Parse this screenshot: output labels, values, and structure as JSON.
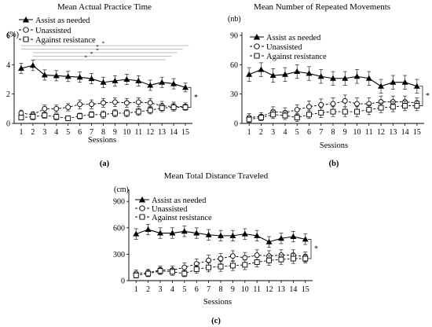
{
  "chart_data": [
    {
      "type": "line",
      "panel_label": "(a)",
      "title": "Mean Actual Practice Time",
      "xlabel": "Sessions",
      "ylabel": "(%)",
      "x": [
        1,
        2,
        3,
        4,
        5,
        6,
        7,
        8,
        9,
        10,
        11,
        12,
        13,
        14,
        15
      ],
      "xlim": [
        0.4,
        15.6
      ],
      "ylim": [
        0,
        6
      ],
      "yticks": [
        0,
        2,
        4,
        6
      ],
      "significance_marker": "*",
      "brackets": [
        [
          1,
          15
        ],
        [
          1,
          14
        ],
        [
          2,
          13
        ],
        [
          2,
          12
        ],
        [
          2,
          11
        ]
      ],
      "series": [
        {
          "name": "Assist as needed",
          "marker": "triangle",
          "filled": true,
          "dashed": false,
          "values": [
            3.75,
            3.95,
            3.3,
            3.25,
            3.2,
            3.15,
            3.05,
            2.8,
            2.9,
            3.0,
            2.9,
            2.6,
            2.8,
            2.7,
            2.45
          ],
          "errors": [
            0.35,
            0.35,
            0.35,
            0.35,
            0.35,
            0.35,
            0.35,
            0.35,
            0.35,
            0.35,
            0.35,
            0.35,
            0.35,
            0.35,
            0.3
          ]
        },
        {
          "name": "Unassisted",
          "marker": "circle",
          "filled": false,
          "dashed": true,
          "values": [
            0.7,
            0.6,
            1.0,
            1.0,
            1.1,
            1.3,
            1.3,
            1.4,
            1.45,
            1.4,
            1.45,
            1.4,
            1.2,
            1.15,
            1.15
          ],
          "errors": [
            0.2,
            0.2,
            0.25,
            0.25,
            0.25,
            0.3,
            0.3,
            0.3,
            0.3,
            0.3,
            0.3,
            0.3,
            0.3,
            0.3,
            0.25
          ]
        },
        {
          "name": "Against resistance",
          "marker": "square",
          "filled": false,
          "dashed": true,
          "values": [
            0.4,
            0.45,
            0.55,
            0.45,
            0.35,
            0.5,
            0.6,
            0.6,
            0.7,
            0.7,
            0.8,
            0.9,
            1.05,
            1.1,
            1.1
          ],
          "errors": [
            0.15,
            0.2,
            0.2,
            0.2,
            0.15,
            0.2,
            0.2,
            0.25,
            0.25,
            0.25,
            0.25,
            0.25,
            0.25,
            0.25,
            0.2
          ]
        }
      ]
    },
    {
      "type": "line",
      "panel_label": "(b)",
      "title": "Mean Number of Repeated Movements",
      "xlabel": "Sessions",
      "ylabel": "(nb)",
      "x": [
        1,
        2,
        3,
        4,
        5,
        6,
        7,
        8,
        9,
        10,
        11,
        12,
        13,
        14,
        15
      ],
      "xlim": [
        0.4,
        15.6
      ],
      "ylim": [
        0,
        90
      ],
      "yticks": [
        0,
        30,
        60,
        90
      ],
      "significance_marker": "*",
      "series": [
        {
          "name": "Assist as needed",
          "marker": "triangle",
          "filled": true,
          "dashed": false,
          "values": [
            50,
            55,
            49,
            50,
            53,
            51,
            48,
            46,
            46,
            48,
            46,
            38,
            42,
            42,
            38
          ],
          "errors": [
            7,
            7,
            7,
            7,
            7,
            7,
            7,
            7,
            7,
            7,
            7,
            7,
            7,
            7,
            7
          ]
        },
        {
          "name": "Unassisted",
          "marker": "circle",
          "filled": false,
          "dashed": true,
          "values": [
            6,
            7,
            12,
            11,
            14,
            17,
            19,
            20,
            23,
            20,
            20,
            22,
            22,
            22,
            21
          ],
          "errors": [
            4,
            4,
            5,
            5,
            5,
            6,
            6,
            6,
            6,
            6,
            6,
            6,
            6,
            6,
            5
          ]
        },
        {
          "name": "Against resistance",
          "marker": "square",
          "filled": false,
          "dashed": true,
          "values": [
            4,
            6,
            9,
            8,
            6,
            9,
            11,
            12,
            12,
            12,
            14,
            16,
            17,
            18,
            18
          ],
          "errors": [
            3,
            3,
            4,
            4,
            4,
            4,
            5,
            5,
            5,
            5,
            5,
            5,
            5,
            5,
            5
          ]
        }
      ]
    },
    {
      "type": "line",
      "panel_label": "(c)",
      "title": "Mean Total Distance Traveled",
      "xlabel": "Sessions",
      "ylabel": "(cm)",
      "x": [
        1,
        2,
        3,
        4,
        5,
        6,
        7,
        8,
        9,
        10,
        11,
        12,
        13,
        14,
        15
      ],
      "xlim": [
        0.4,
        15.6
      ],
      "ylim": [
        0,
        1000
      ],
      "yticks": [
        0,
        300,
        600,
        900
      ],
      "significance_marker": "*",
      "series": [
        {
          "name": "Assist as needed",
          "marker": "triangle",
          "filled": true,
          "dashed": false,
          "values": [
            530,
            580,
            540,
            540,
            560,
            540,
            520,
            510,
            510,
            530,
            510,
            440,
            480,
            500,
            470
          ],
          "errors": [
            60,
            60,
            60,
            60,
            60,
            60,
            60,
            60,
            60,
            60,
            60,
            60,
            60,
            60,
            60
          ]
        },
        {
          "name": "Unassisted",
          "marker": "circle",
          "filled": false,
          "dashed": true,
          "values": [
            80,
            90,
            120,
            120,
            150,
            190,
            230,
            250,
            280,
            260,
            290,
            280,
            290,
            290,
            270
          ],
          "errors": [
            40,
            40,
            45,
            45,
            50,
            55,
            60,
            60,
            60,
            60,
            60,
            60,
            60,
            60,
            55
          ]
        },
        {
          "name": "Against resistance",
          "marker": "square",
          "filled": false,
          "dashed": true,
          "values": [
            60,
            80,
            110,
            100,
            80,
            130,
            150,
            160,
            170,
            180,
            210,
            230,
            240,
            250,
            250
          ],
          "errors": [
            30,
            35,
            40,
            40,
            35,
            45,
            50,
            55,
            55,
            55,
            55,
            55,
            55,
            55,
            50
          ]
        }
      ]
    }
  ]
}
